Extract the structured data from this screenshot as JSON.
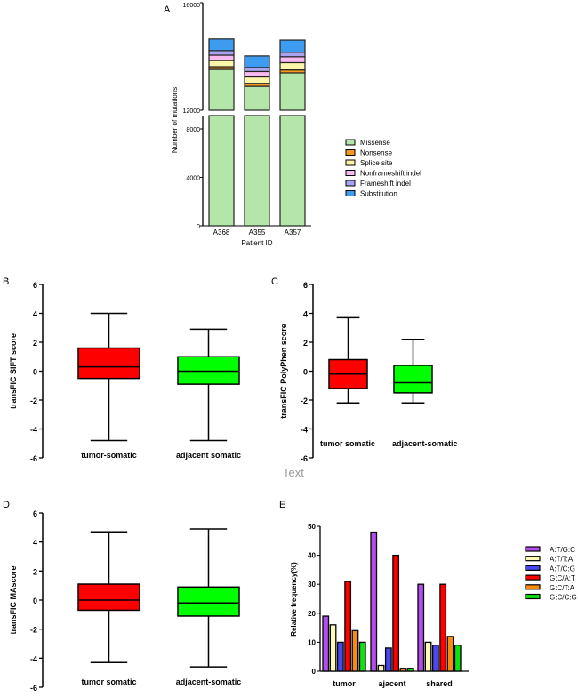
{
  "watermark": "Text",
  "chart_data": [
    {
      "panel": "A",
      "type": "bar",
      "stacked": true,
      "title": "",
      "xlabel": "Patient ID",
      "ylabel": "Number of mutations",
      "categories": [
        "A368",
        "A355",
        "A357"
      ],
      "yticks": [
        "0",
        "4000",
        "8000",
        "12000",
        "16000"
      ],
      "axis_break": [
        8000,
        12000
      ],
      "series": [
        {
          "name": "Missense",
          "color": "#b3e6a8",
          "values": [
            13520,
            12890,
            13390
          ]
        },
        {
          "name": "Nonsense",
          "color": "#f39a1c",
          "values": [
            100,
            110,
            110
          ]
        },
        {
          "name": "Splice site",
          "color": "#fcf6a8",
          "values": [
            230,
            240,
            270
          ]
        },
        {
          "name": "Nonframeshift indel",
          "color": "#f8b8f0",
          "values": [
            200,
            200,
            220
          ]
        },
        {
          "name": "Frameshift indel",
          "color": "#a8a4f0",
          "values": [
            170,
            150,
            170
          ]
        },
        {
          "name": "Substitution",
          "color": "#3e9cf0",
          "values": [
            430,
            430,
            450
          ]
        }
      ]
    },
    {
      "panel": "B",
      "type": "box",
      "ylabel": "transFIC SIFT score",
      "ylim": [
        -6,
        6
      ],
      "yticks": [
        "-6",
        "-4",
        "-2",
        "0",
        "2",
        "4",
        "6"
      ],
      "categories": [
        "tumor-somatic",
        "adjacent somatic"
      ],
      "colors": [
        "#ff0000",
        "#00ff00"
      ],
      "boxes": [
        {
          "min": -4.8,
          "q1": -0.5,
          "median": 0.3,
          "q3": 1.6,
          "max": 4.0
        },
        {
          "min": -4.8,
          "q1": -0.9,
          "median": 0.0,
          "q3": 1.0,
          "max": 2.9
        }
      ]
    },
    {
      "panel": "C",
      "type": "box",
      "ylabel": "transFIC PolyPhen score",
      "ylim": [
        -6,
        6
      ],
      "yticks": [
        "-6",
        "-4",
        "-2",
        "0",
        "2",
        "4",
        "6"
      ],
      "categories": [
        "tumor somatic",
        "adjacent-somatic"
      ],
      "colors": [
        "#ff0000",
        "#00ff00"
      ],
      "boxes": [
        {
          "min": -2.2,
          "q1": -1.2,
          "median": -0.2,
          "q3": 0.8,
          "max": 3.7
        },
        {
          "min": -2.2,
          "q1": -1.5,
          "median": -0.8,
          "q3": 0.4,
          "max": 2.2
        }
      ]
    },
    {
      "panel": "D",
      "type": "box",
      "ylabel": "transFIC MAscore",
      "ylim": [
        -6,
        6
      ],
      "yticks": [
        "-6",
        "-4",
        "-2",
        "0",
        "2",
        "4",
        "6"
      ],
      "categories": [
        "tumor somatic",
        "adjacent-somatic"
      ],
      "colors": [
        "#ff0000",
        "#00ff00"
      ],
      "boxes": [
        {
          "min": -4.3,
          "q1": -0.7,
          "median": 0.0,
          "q3": 1.1,
          "max": 4.7
        },
        {
          "min": -4.6,
          "q1": -1.1,
          "median": -0.2,
          "q3": 0.9,
          "max": 4.9
        }
      ]
    },
    {
      "panel": "E",
      "type": "bar",
      "ylabel": "Relative frequency(%)",
      "ylim": [
        0,
        50
      ],
      "yticks": [
        "0",
        "10",
        "20",
        "30",
        "40",
        "50"
      ],
      "categories": [
        "tumor",
        "ajacent",
        "shared"
      ],
      "series": [
        {
          "name": "A:T/G:C",
          "color": "#b44cf0",
          "values": [
            19,
            48,
            30
          ]
        },
        {
          "name": "A:T/T:A",
          "color": "#fcfcb8",
          "values": [
            16,
            2,
            10
          ]
        },
        {
          "name": "A:T/C:G",
          "color": "#4848f0",
          "values": [
            10,
            8,
            9
          ]
        },
        {
          "name": "G:C/A:T",
          "color": "#ff0000",
          "values": [
            31,
            40,
            30
          ]
        },
        {
          "name": "G:C/T:A",
          "color": "#f88a10",
          "values": [
            14,
            1,
            12
          ]
        },
        {
          "name": "G:C/C:G",
          "color": "#10e010",
          "values": [
            10,
            1,
            9
          ]
        }
      ]
    }
  ]
}
